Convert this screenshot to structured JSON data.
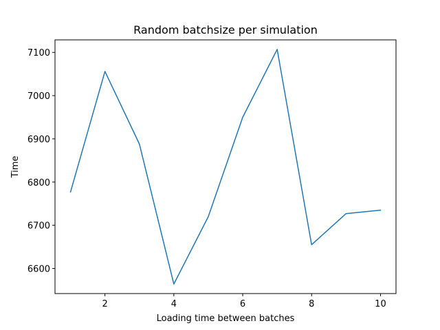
{
  "chart_data": {
    "type": "line",
    "title": "Random batchsize per simulation",
    "xlabel": "Loading time between batches",
    "ylabel": "Time",
    "x": [
      1,
      2,
      3,
      4,
      5,
      6,
      7,
      8,
      9,
      10
    ],
    "series": [
      {
        "values": [
          6777,
          7056,
          6888,
          6564,
          6720,
          6950,
          7107,
          6655,
          6727,
          6735
        ],
        "color": "#1f77b4"
      }
    ],
    "xlim": [
      0.55,
      10.45
    ],
    "ylim": [
      6542,
      7129
    ],
    "xticks": [
      2,
      4,
      6,
      8,
      10
    ],
    "yticks": [
      6600,
      6700,
      6800,
      6900,
      7000,
      7100
    ],
    "grid": false,
    "legend": "none"
  }
}
